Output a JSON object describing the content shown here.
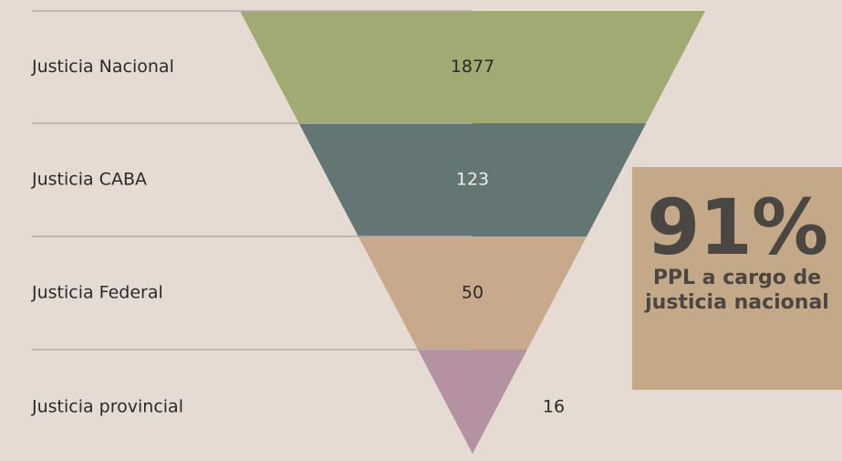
{
  "chart_data": {
    "type": "funnel",
    "categories": [
      "Justicia Nacional",
      "Justicia CABA",
      "Justicia Federal",
      "Justicia provincial"
    ],
    "values": [
      1877,
      123,
      50,
      16
    ],
    "colors": [
      "#a0aa72",
      "#647673",
      "#c9a98b",
      "#b492a1"
    ],
    "annotation": {
      "headline": "91%",
      "text": "PPL a cargo de justicia nacional"
    }
  }
}
